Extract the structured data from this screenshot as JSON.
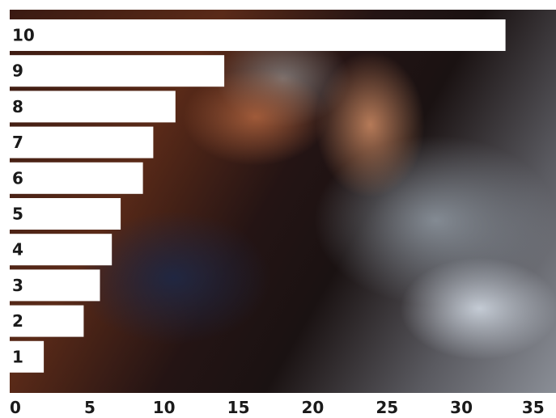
{
  "chart_data": {
    "type": "bar",
    "orientation": "horizontal",
    "categories": [
      "10",
      "9",
      "8",
      "7",
      "6",
      "5",
      "4",
      "3",
      "2",
      "1"
    ],
    "values": [
      33.5,
      14.5,
      11.2,
      9.7,
      9.0,
      7.5,
      6.9,
      6.1,
      5.0,
      2.3
    ],
    "xlim": [
      0,
      35
    ],
    "xticks": [
      "0",
      "5",
      "10",
      "15",
      "20",
      "25",
      "30",
      "35"
    ],
    "title": "",
    "xlabel": "",
    "ylabel": "",
    "bar_color": "#ffffff",
    "label_color": "#1a1a1a",
    "grid": false,
    "legend": "none"
  }
}
